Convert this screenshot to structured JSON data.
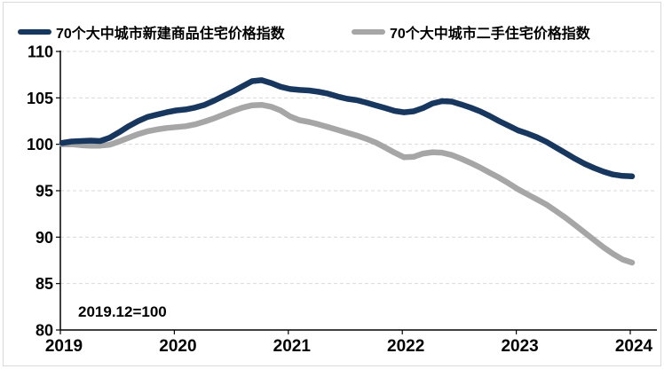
{
  "annotation": "2019.12=100",
  "chart_data": {
    "type": "line",
    "title": "",
    "xlabel": "",
    "ylabel": "",
    "x_tick_labels": [
      "2019",
      "2020",
      "2021",
      "2022",
      "2023",
      "2024"
    ],
    "y_ticks": [
      80,
      85,
      90,
      95,
      100,
      105,
      110
    ],
    "ylim": [
      80,
      110
    ],
    "grid": "horizontal-dashed",
    "legend_position": "top",
    "note": "2019.12=100",
    "points_per_year": 12,
    "series": [
      {
        "name": "70个大中城市新建商品住宅价格指数",
        "color": "#17375E",
        "values": [
          100.15,
          100.3,
          100.35,
          100.4,
          100.35,
          100.7,
          101.3,
          101.95,
          102.5,
          102.95,
          103.2,
          103.45,
          103.65,
          103.75,
          103.95,
          104.25,
          104.7,
          105.2,
          105.7,
          106.25,
          106.8,
          106.9,
          106.6,
          106.2,
          105.95,
          105.85,
          105.8,
          105.65,
          105.45,
          105.15,
          104.9,
          104.75,
          104.5,
          104.2,
          103.9,
          103.6,
          103.45,
          103.55,
          103.9,
          104.4,
          104.65,
          104.6,
          104.3,
          103.95,
          103.55,
          103.05,
          102.5,
          102.0,
          101.5,
          101.15,
          100.75,
          100.25,
          99.65,
          99.05,
          98.45,
          97.9,
          97.45,
          97.05,
          96.75,
          96.6,
          96.55
        ]
      },
      {
        "name": "70个大中城市二手住宅价格指数",
        "color": "#A6A6A6",
        "values": [
          100.0,
          100.0,
          99.9,
          99.85,
          99.85,
          99.95,
          100.3,
          100.7,
          101.1,
          101.4,
          101.6,
          101.75,
          101.85,
          101.95,
          102.15,
          102.45,
          102.8,
          103.2,
          103.6,
          103.95,
          104.2,
          104.25,
          104.05,
          103.65,
          103.0,
          102.6,
          102.4,
          102.15,
          101.85,
          101.55,
          101.25,
          100.95,
          100.6,
          100.2,
          99.65,
          99.1,
          98.6,
          98.65,
          99.0,
          99.15,
          99.1,
          98.85,
          98.45,
          98.0,
          97.5,
          96.95,
          96.4,
          95.8,
          95.15,
          94.6,
          94.05,
          93.5,
          92.8,
          92.1,
          91.3,
          90.5,
          89.7,
          88.9,
          88.2,
          87.6,
          87.25
        ]
      }
    ]
  }
}
